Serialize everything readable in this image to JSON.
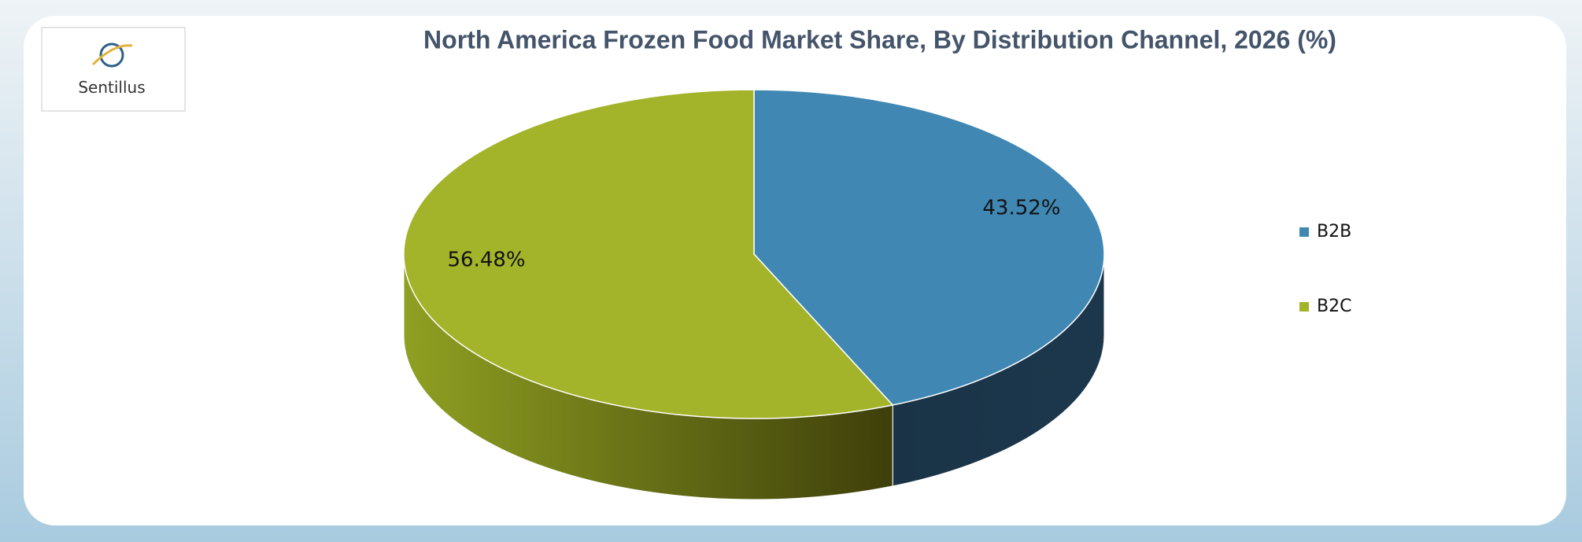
{
  "logo": "Sentillus",
  "chart_data": {
    "type": "pie3d",
    "title": "North America Frozen Food Market Share, By Distribution Channel, 2026 (%)",
    "categories": [
      "B2B",
      "B2C"
    ],
    "values": [
      43.52,
      56.48
    ],
    "value_labels": [
      "43.52%",
      "56.48%"
    ],
    "colors": [
      "#4088b3",
      "#a3b42a"
    ],
    "legend": "right"
  }
}
